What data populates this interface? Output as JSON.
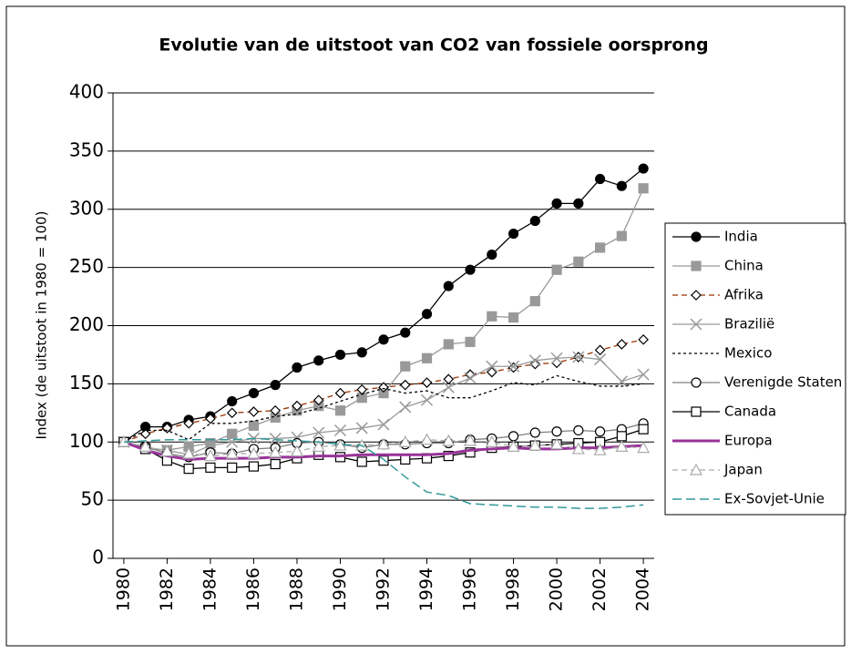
{
  "chart_data": {
    "type": "line",
    "title": "Evolutie van de uitstoot van CO2 van fossiele oorsprong",
    "y_label": "Index (de uitstoot in 1980 = 100)",
    "x": [
      1980,
      1981,
      1982,
      1983,
      1984,
      1985,
      1986,
      1987,
      1988,
      1989,
      1990,
      1991,
      1992,
      1993,
      1994,
      1995,
      1996,
      1997,
      1998,
      1999,
      2000,
      2001,
      2002,
      2003,
      2004
    ],
    "xlim": [
      1979.5,
      2004.5
    ],
    "xticks": [
      1980,
      1982,
      1984,
      1986,
      1988,
      1990,
      1992,
      1994,
      1996,
      1998,
      2000,
      2002,
      2004
    ],
    "ylim": [
      0,
      400
    ],
    "yticks": [
      0,
      50,
      100,
      150,
      200,
      250,
      300,
      350,
      400
    ],
    "grid": true,
    "legend": "right",
    "series": [
      {
        "name": "India",
        "color": "#000000",
        "marker": "circle",
        "marker_fill": "#000000",
        "dash": "solid",
        "values": [
          100,
          113,
          113,
          119,
          122,
          135,
          142,
          149,
          164,
          170,
          175,
          177,
          188,
          194,
          210,
          234,
          248,
          261,
          279,
          290,
          305,
          305,
          326,
          320,
          335
        ]
      },
      {
        "name": "China",
        "color": "#999999",
        "marker": "square",
        "marker_fill": "#999999",
        "dash": "solid",
        "values": [
          100,
          94,
          93,
          96,
          99,
          107,
          114,
          121,
          127,
          131,
          127,
          138,
          142,
          165,
          172,
          184,
          186,
          208,
          207,
          221,
          248,
          255,
          267,
          277,
          318
        ]
      },
      {
        "name": "Afrika",
        "color": "#993300",
        "marker": "diamond",
        "marker_fill": "#ffffff",
        "dash": "dashed",
        "values": [
          100,
          107,
          112,
          116,
          120,
          125,
          126,
          127,
          131,
          136,
          142,
          145,
          147,
          149,
          151,
          154,
          158,
          160,
          164,
          167,
          168,
          173,
          179,
          184,
          188
        ]
      },
      {
        "name": "Brazilië",
        "color": "#999999",
        "marker": "x",
        "marker_fill": "none",
        "dash": "solid",
        "values": [
          100,
          95,
          93,
          89,
          97,
          100,
          103,
          103,
          104,
          108,
          110,
          112,
          115,
          130,
          136,
          147,
          155,
          165,
          165,
          170,
          172,
          173,
          171,
          152,
          158
        ]
      },
      {
        "name": "Mexico",
        "color": "#000000",
        "marker": "none",
        "marker_fill": "none",
        "dash": "dotted",
        "values": [
          100,
          110,
          110,
          102,
          116,
          116,
          118,
          122,
          124,
          129,
          135,
          141,
          146,
          142,
          144,
          138,
          138,
          144,
          151,
          149,
          157,
          152,
          148,
          148,
          150
        ]
      },
      {
        "name": "Verenigde Staten",
        "color": "#808080",
        "marker": "circle",
        "marker_fill": "#ffffff",
        "dash": "solid",
        "values": [
          100,
          96,
          90,
          87,
          91,
          90,
          94,
          95,
          99,
          100,
          98,
          95,
          98,
          98,
          99,
          99,
          102,
          103,
          105,
          108,
          109,
          110,
          109,
          111,
          116
        ]
      },
      {
        "name": "Canada",
        "color": "#000000",
        "marker": "square",
        "marker_fill": "#ffffff",
        "dash": "solid",
        "values": [
          100,
          94,
          84,
          77,
          78,
          78,
          79,
          81,
          86,
          89,
          87,
          83,
          84,
          85,
          86,
          88,
          91,
          95,
          96,
          97,
          98,
          99,
          100,
          105,
          111
        ]
      },
      {
        "name": "Europa",
        "color": "#993399",
        "marker": "none",
        "marker_fill": "none",
        "dash": "thick",
        "values": [
          100,
          93,
          88,
          85,
          86,
          86,
          86,
          87,
          87,
          88,
          88,
          89,
          89,
          89,
          89,
          90,
          93,
          94,
          95,
          94,
          94,
          95,
          95,
          96,
          97
        ]
      },
      {
        "name": "Japan",
        "color": "#aaaaaa",
        "marker": "triangle",
        "marker_fill": "#ffffff",
        "dash": "dashed",
        "values": [
          100,
          96,
          92,
          90,
          88,
          90,
          90,
          91,
          92,
          96,
          97,
          97,
          98,
          100,
          102,
          101,
          101,
          100,
          96,
          97,
          98,
          94,
          93,
          96,
          95
        ]
      },
      {
        "name": "Ex-Sovjet-Unie",
        "color": "#339999",
        "marker": "none",
        "marker_fill": "none",
        "dash": "longdash",
        "values": [
          100,
          101,
          102,
          102,
          102,
          102,
          103,
          102,
          101,
          100,
          98,
          97,
          85,
          70,
          57,
          54,
          47,
          46,
          45,
          44,
          44,
          43,
          43,
          44,
          46
        ]
      }
    ]
  }
}
